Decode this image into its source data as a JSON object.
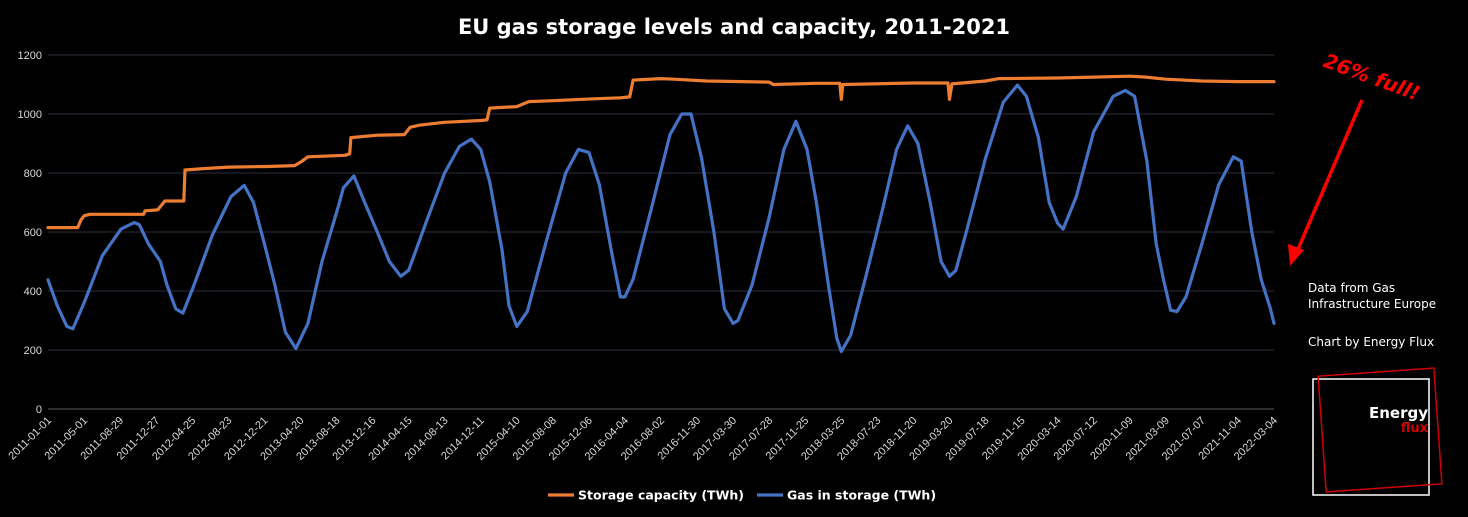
{
  "chart_data": {
    "type": "line",
    "title": "EU gas storage levels and capacity,  2011-2021",
    "xlabel": "",
    "ylabel": "",
    "ylim": [
      0,
      1200
    ],
    "yticks": [
      0,
      200,
      400,
      600,
      800,
      1000,
      1200
    ],
    "grid": true,
    "legend_position": "bottom",
    "x_tick_labels": [
      "2011-01-01",
      "2011-05-01",
      "2011-08-29",
      "2011-12-27",
      "2012-04-25",
      "2012-08-23",
      "2012-12-21",
      "2013-04-20",
      "2013-08-18",
      "2013-12-16",
      "2014-04-15",
      "2014-08-13",
      "2014-12-11",
      "2015-04-10",
      "2015-08-08",
      "2015-12-06",
      "2016-04-04",
      "2016-08-02",
      "2016-11-30",
      "2017-03-30",
      "2017-07-28",
      "2017-11-25",
      "2018-03-25",
      "2018-07-23",
      "2018-11-20",
      "2019-03-20",
      "2019-07-18",
      "2019-11-15",
      "2020-03-14",
      "2020-07-12",
      "2020-11-09",
      "2021-03-09",
      "2021-07-07",
      "2021-11-04",
      "2022-03-04"
    ],
    "series": [
      {
        "name": "Storage capacity (TWh)",
        "color": "#ED7D31",
        "points": [
          [
            "2011-01-01",
            615
          ],
          [
            "2011-04-10",
            615
          ],
          [
            "2011-04-20",
            640
          ],
          [
            "2011-05-01",
            655
          ],
          [
            "2011-05-20",
            660
          ],
          [
            "2011-11-15",
            660
          ],
          [
            "2011-11-20",
            672
          ],
          [
            "2012-01-01",
            675
          ],
          [
            "2012-01-25",
            705
          ],
          [
            "2012-03-28",
            705
          ],
          [
            "2012-04-01",
            810
          ],
          [
            "2012-06-01",
            815
          ],
          [
            "2012-08-23",
            820
          ],
          [
            "2013-01-01",
            822
          ],
          [
            "2013-04-01",
            825
          ],
          [
            "2013-04-25",
            840
          ],
          [
            "2013-05-15",
            855
          ],
          [
            "2013-09-15",
            860
          ],
          [
            "2013-10-01",
            865
          ],
          [
            "2013-10-05",
            920
          ],
          [
            "2014-01-01",
            928
          ],
          [
            "2014-04-01",
            930
          ],
          [
            "2014-04-20",
            955
          ],
          [
            "2014-05-20",
            962
          ],
          [
            "2014-08-13",
            972
          ],
          [
            "2014-12-11",
            978
          ],
          [
            "2015-01-01",
            980
          ],
          [
            "2015-01-10",
            1020
          ],
          [
            "2015-04-10",
            1025
          ],
          [
            "2015-05-20",
            1042
          ],
          [
            "2015-08-08",
            1045
          ],
          [
            "2016-01-01",
            1052
          ],
          [
            "2016-03-20",
            1055
          ],
          [
            "2016-04-20",
            1058
          ],
          [
            "2016-05-01",
            1115
          ],
          [
            "2016-08-02",
            1120
          ],
          [
            "2016-09-15",
            1118
          ],
          [
            "2017-01-01",
            1112
          ],
          [
            "2017-07-28",
            1108
          ],
          [
            "2017-08-10",
            1100
          ],
          [
            "2018-01-01",
            1104
          ],
          [
            "2018-03-20",
            1104
          ],
          [
            "2018-03-25",
            1050
          ],
          [
            "2018-03-30",
            1100
          ],
          [
            "2018-11-20",
            1105
          ],
          [
            "2019-03-15",
            1105
          ],
          [
            "2019-03-20",
            1050
          ],
          [
            "2019-03-28",
            1102
          ],
          [
            "2019-07-18",
            1112
          ],
          [
            "2019-09-01",
            1120
          ],
          [
            "2020-03-14",
            1122
          ],
          [
            "2020-07-12",
            1125
          ],
          [
            "2020-11-09",
            1128
          ],
          [
            "2021-01-01",
            1125
          ],
          [
            "2021-03-09",
            1118
          ],
          [
            "2021-07-07",
            1112
          ],
          [
            "2021-11-04",
            1110
          ],
          [
            "2022-03-04",
            1110
          ]
        ]
      },
      {
        "name": "Gas in storage (TWh)",
        "color": "#4472C4",
        "points": [
          [
            "2011-01-01",
            438
          ],
          [
            "2011-02-01",
            350
          ],
          [
            "2011-03-05",
            280
          ],
          [
            "2011-03-25",
            272
          ],
          [
            "2011-05-01",
            360
          ],
          [
            "2011-07-01",
            520
          ],
          [
            "2011-09-01",
            610
          ],
          [
            "2011-10-15",
            632
          ],
          [
            "2011-11-01",
            625
          ],
          [
            "2011-12-01",
            560
          ],
          [
            "2012-01-10",
            500
          ],
          [
            "2012-02-01",
            420
          ],
          [
            "2012-03-01",
            340
          ],
          [
            "2012-03-25",
            325
          ],
          [
            "2012-05-01",
            420
          ],
          [
            "2012-07-01",
            590
          ],
          [
            "2012-09-01",
            720
          ],
          [
            "2012-10-15",
            758
          ],
          [
            "2012-11-15",
            700
          ],
          [
            "2012-12-21",
            560
          ],
          [
            "2013-01-25",
            420
          ],
          [
            "2013-03-01",
            260
          ],
          [
            "2013-04-05",
            205
          ],
          [
            "2013-05-15",
            290
          ],
          [
            "2013-07-01",
            500
          ],
          [
            "2013-08-25",
            690
          ],
          [
            "2013-09-10",
            750
          ],
          [
            "2013-10-15",
            790
          ],
          [
            "2013-11-20",
            700
          ],
          [
            "2014-01-01",
            600
          ],
          [
            "2014-02-10",
            500
          ],
          [
            "2014-03-20",
            450
          ],
          [
            "2014-04-15",
            470
          ],
          [
            "2014-06-15",
            640
          ],
          [
            "2014-08-13",
            800
          ],
          [
            "2014-10-01",
            890
          ],
          [
            "2014-11-10",
            915
          ],
          [
            "2014-12-11",
            880
          ],
          [
            "2015-01-10",
            770
          ],
          [
            "2015-02-20",
            540
          ],
          [
            "2015-03-15",
            350
          ],
          [
            "2015-04-10",
            280
          ],
          [
            "2015-05-15",
            330
          ],
          [
            "2015-07-15",
            560
          ],
          [
            "2015-09-20",
            800
          ],
          [
            "2015-11-01",
            880
          ],
          [
            "2015-12-06",
            870
          ],
          [
            "2016-01-10",
            760
          ],
          [
            "2016-02-20",
            530
          ],
          [
            "2016-03-20",
            380
          ],
          [
            "2016-04-04",
            380
          ],
          [
            "2016-05-01",
            440
          ],
          [
            "2016-07-01",
            680
          ],
          [
            "2016-09-01",
            930
          ],
          [
            "2016-10-10",
            1000
          ],
          [
            "2016-11-10",
            1000
          ],
          [
            "2016-12-15",
            850
          ],
          [
            "2017-01-25",
            600
          ],
          [
            "2017-03-01",
            340
          ],
          [
            "2017-03-30",
            290
          ],
          [
            "2017-04-15",
            300
          ],
          [
            "2017-06-01",
            420
          ],
          [
            "2017-07-28",
            650
          ],
          [
            "2017-09-15",
            880
          ],
          [
            "2017-10-25",
            975
          ],
          [
            "2017-12-01",
            880
          ],
          [
            "2018-01-01",
            700
          ],
          [
            "2018-02-10",
            420
          ],
          [
            "2018-03-10",
            240
          ],
          [
            "2018-03-25",
            195
          ],
          [
            "2018-04-25",
            250
          ],
          [
            "2018-06-15",
            450
          ],
          [
            "2018-08-10",
            680
          ],
          [
            "2018-09-25",
            880
          ],
          [
            "2018-11-01",
            960
          ],
          [
            "2018-12-05",
            900
          ],
          [
            "2019-01-15",
            700
          ],
          [
            "2019-02-20",
            500
          ],
          [
            "2019-03-20",
            450
          ],
          [
            "2019-04-10",
            470
          ],
          [
            "2019-05-15",
            600
          ],
          [
            "2019-07-18",
            850
          ],
          [
            "2019-09-15",
            1040
          ],
          [
            "2019-11-01",
            1098
          ],
          [
            "2019-12-01",
            1060
          ],
          [
            "2020-01-10",
            920
          ],
          [
            "2020-02-15",
            700
          ],
          [
            "2020-03-14",
            630
          ],
          [
            "2020-04-01",
            610
          ],
          [
            "2020-05-15",
            720
          ],
          [
            "2020-07-12",
            940
          ],
          [
            "2020-09-15",
            1060
          ],
          [
            "2020-10-25",
            1080
          ],
          [
            "2020-11-25",
            1060
          ],
          [
            "2021-01-05",
            840
          ],
          [
            "2021-02-05",
            560
          ],
          [
            "2021-03-01",
            440
          ],
          [
            "2021-03-25",
            335
          ],
          [
            "2021-04-15",
            330
          ],
          [
            "2021-05-15",
            380
          ],
          [
            "2021-07-07",
            560
          ],
          [
            "2021-09-01",
            760
          ],
          [
            "2021-10-20",
            855
          ],
          [
            "2021-11-15",
            840
          ],
          [
            "2021-12-20",
            600
          ],
          [
            "2022-01-20",
            440
          ],
          [
            "2022-02-20",
            340
          ],
          [
            "2022-03-04",
            290
          ]
        ]
      }
    ]
  },
  "annotations": {
    "callout": "26% full!",
    "source_line1": "Data from Gas",
    "source_line2": "Infrastructure Europe",
    "credit": "Chart by Energy Flux",
    "logo_line1": "Energy",
    "logo_line2": "flux",
    "callout_color": "#ff0000"
  }
}
